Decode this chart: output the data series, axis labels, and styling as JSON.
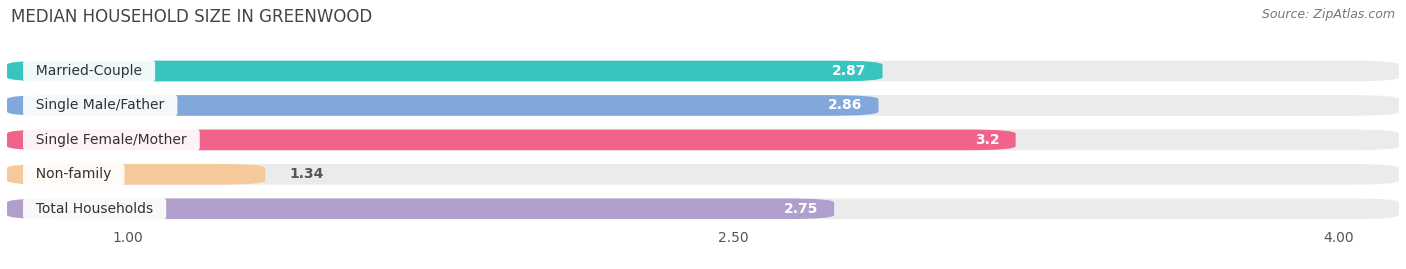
{
  "title": "MEDIAN HOUSEHOLD SIZE IN GREENWOOD",
  "source": "Source: ZipAtlas.com",
  "categories": [
    "Married-Couple",
    "Single Male/Father",
    "Single Female/Mother",
    "Non-family",
    "Total Households"
  ],
  "values": [
    2.87,
    2.86,
    3.2,
    1.34,
    2.75
  ],
  "bar_colors": [
    "#38c5c0",
    "#82a8db",
    "#f0648c",
    "#f5c99a",
    "#b09fcc"
  ],
  "xlim_data": [
    0.7,
    4.15
  ],
  "xmin": 0.7,
  "xmax": 4.15,
  "xticks": [
    1.0,
    2.5,
    4.0
  ],
  "label_inside_threshold": 2.0,
  "background_color": "#ffffff",
  "bar_bg_color": "#ebebeb",
  "title_fontsize": 12,
  "source_fontsize": 9,
  "value_fontsize": 10,
  "cat_fontsize": 10,
  "tick_fontsize": 10,
  "bar_height": 0.6,
  "bar_gap": 0.4
}
